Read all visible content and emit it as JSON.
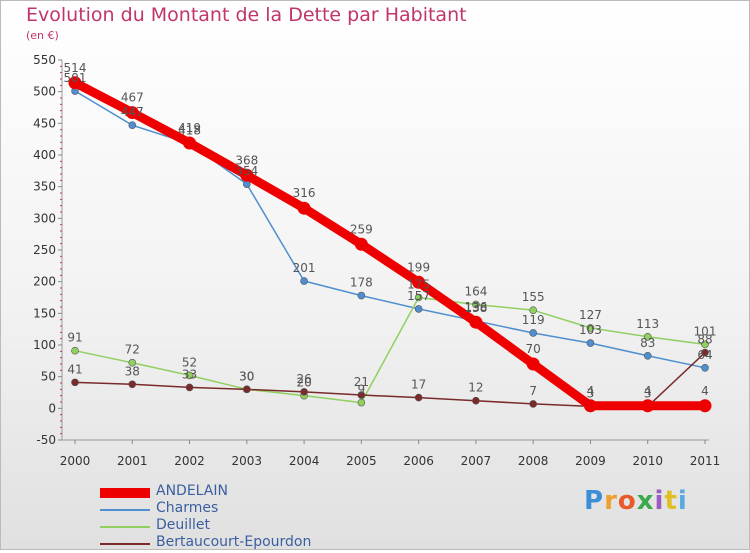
{
  "header": {
    "title": "Evolution du Montant de la Dette par Habitant",
    "subtitle": "(en €)"
  },
  "logo": {
    "text": "Proxiti"
  },
  "chart_data": {
    "type": "line",
    "title": "Evolution du Montant de la Dette par Habitant",
    "subtitle": "(en €)",
    "xlabel": "",
    "ylabel": "",
    "x": [
      "2000",
      "2001",
      "2002",
      "2003",
      "2004",
      "2005",
      "2006",
      "2007",
      "2008",
      "2009",
      "2010",
      "2011"
    ],
    "ylim": [
      -50,
      550
    ],
    "yticks": [
      -50,
      0,
      50,
      100,
      150,
      200,
      250,
      300,
      350,
      400,
      450,
      500,
      550
    ],
    "grid": false,
    "legend_position": "bottom-left",
    "series": [
      {
        "name": "ANDELAIN",
        "color": "#ee0000",
        "values": [
          514,
          467,
          419,
          368,
          316,
          259,
          199,
          136,
          70,
          4,
          4,
          4
        ]
      },
      {
        "name": "Charmes",
        "color": "#4f8fcf",
        "values": [
          501,
          447,
          418,
          354,
          201,
          178,
          157,
          138,
          119,
          103,
          83,
          64
        ]
      },
      {
        "name": "Deuillet",
        "color": "#8fd060",
        "values": [
          91,
          72,
          52,
          30,
          20,
          9,
          175,
          164,
          155,
          127,
          113,
          101
        ]
      },
      {
        "name": "Bertaucourt-Epourdon",
        "color": "#7a2a2a",
        "values": [
          41,
          38,
          33,
          30,
          26,
          21,
          17,
          12,
          7,
          3,
          3,
          88
        ]
      }
    ]
  }
}
